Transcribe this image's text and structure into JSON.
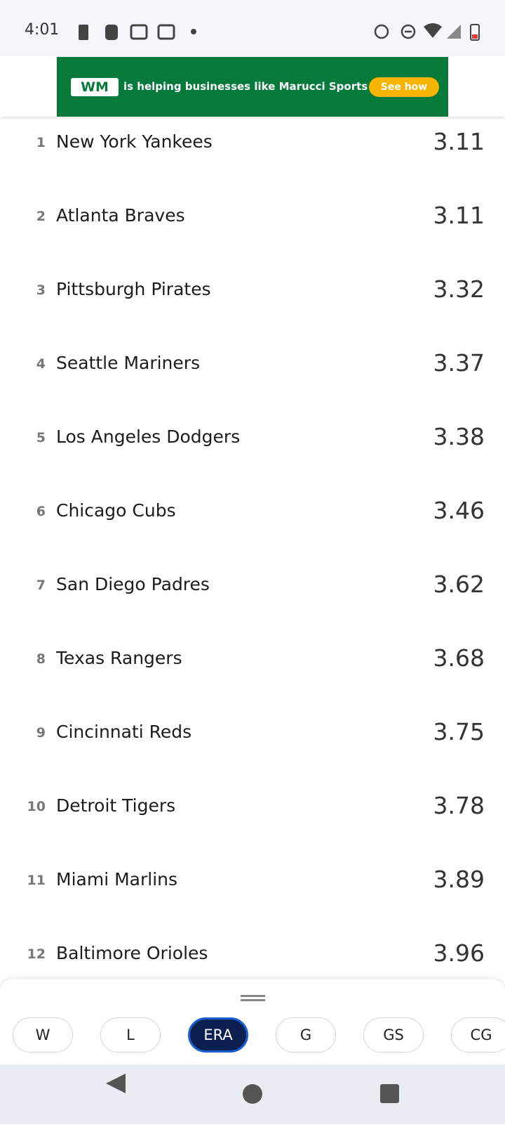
{
  "status_bar": {
    "time": "4:01"
  },
  "ad": {
    "logo": "WM",
    "text": "is helping businesses like Marucci Sports",
    "button": "See how"
  },
  "table": {
    "rows": [
      [
        "1",
        "New York Yankees",
        "3.11"
      ],
      [
        "2",
        "Atlanta Braves",
        "3.11"
      ],
      [
        "3",
        "Pittsburgh Pirates",
        "3.32"
      ],
      [
        "4",
        "Seattle Mariners",
        "3.37"
      ],
      [
        "5",
        "Los Angeles Dodgers",
        "3.38"
      ],
      [
        "6",
        "Chicago Cubs",
        "3.46"
      ],
      [
        "7",
        "San Diego Padres",
        "3.62"
      ],
      [
        "8",
        "Texas Rangers",
        "3.68"
      ],
      [
        "9",
        "Cincinnati Reds",
        "3.75"
      ],
      [
        "10",
        "Detroit Tigers",
        "3.78"
      ],
      [
        "11",
        "Miami Marlins",
        "3.89"
      ],
      [
        "12",
        "Baltimore Orioles",
        "3.96"
      ]
    ]
  },
  "tabs": {
    "items": [
      "W",
      "L",
      "ERA",
      "G",
      "GS",
      "CG"
    ],
    "selected_index": 2
  }
}
